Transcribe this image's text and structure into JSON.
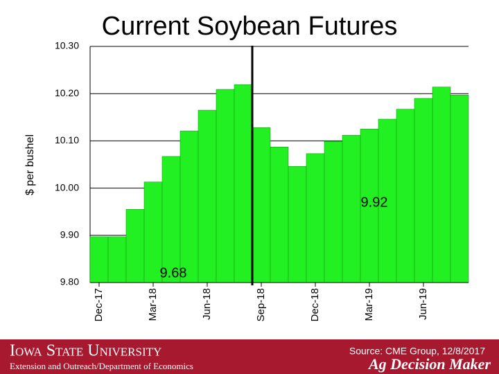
{
  "chart_data": {
    "type": "bar",
    "title": "Current Soybean Futures",
    "y_label": "$ per bushel",
    "categories": [
      "Dec-17",
      null,
      null,
      "Mar-18",
      null,
      null,
      "Jun-18",
      null,
      null,
      "Sep-18",
      null,
      null,
      "Dec-18",
      null,
      null,
      "Mar-19",
      null,
      null,
      "Jun-19",
      null,
      null
    ],
    "values": [
      9.897,
      9.897,
      9.955,
      10.013,
      10.067,
      10.121,
      10.165,
      10.209,
      10.219,
      10.128,
      10.087,
      10.046,
      10.073,
      10.099,
      10.112,
      10.125,
      10.146,
      10.167,
      10.19,
      10.214,
      10.197
    ],
    "color": "#22f022",
    "ylim": [
      9.8,
      10.3
    ],
    "yticks": [
      {
        "value": 9.8,
        "label": "9.80"
      },
      {
        "value": 9.9,
        "label": "9.90"
      },
      {
        "value": 10.0,
        "label": "10.00"
      },
      {
        "value": 10.1,
        "label": "10.10"
      },
      {
        "value": 10.2,
        "label": "10.20"
      },
      {
        "value": 10.3,
        "label": "10.30"
      }
    ],
    "grid": true,
    "annotations": [
      "9.68",
      "9.92"
    ]
  },
  "footer": {
    "university": "Iowa State University",
    "department": "Extension and Outreach/Department of Economics",
    "source": "Source: CME Group, 12/8/2017",
    "brand": "Ag Decision Maker"
  }
}
